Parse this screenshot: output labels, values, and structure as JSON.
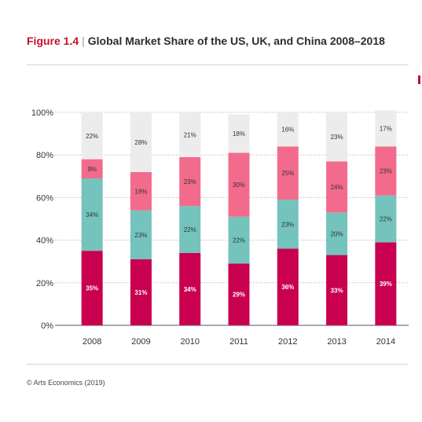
{
  "figure_label": "Figure 1.4",
  "title_text": "Global Market Share of the US, UK, and China 2008–2018",
  "source": "© Arts Economics (2019)",
  "colors": {
    "segment_bottom": "#c8004f",
    "segment_middle": "#74c3bd",
    "segment_upper": "#f36b8c",
    "segment_top": "#ececec",
    "accent": "#c8102e"
  },
  "chart_data": {
    "type": "bar",
    "stacked": true,
    "categories": [
      "2008",
      "2009",
      "2010",
      "2011",
      "2012",
      "2013",
      "2014"
    ],
    "series": [
      {
        "values": [
          35,
          31,
          34,
          29,
          36,
          33,
          39
        ],
        "labels": [
          "35%",
          "31%",
          "34%",
          "29%",
          "36%",
          "33%",
          "39%"
        ]
      },
      {
        "values": [
          34,
          23,
          22,
          22,
          23,
          20,
          22
        ],
        "labels": [
          "34%",
          "23%",
          "22%",
          "22%",
          "23%",
          "20%",
          "22%"
        ]
      },
      {
        "values": [
          9,
          18,
          23,
          30,
          25,
          24,
          23
        ],
        "labels": [
          "9%",
          "18%",
          "23%",
          "30%",
          "25%",
          "24%",
          "23%"
        ]
      },
      {
        "values": [
          22,
          28,
          21,
          18,
          16,
          23,
          17
        ],
        "labels": [
          "22%",
          "28%",
          "21%",
          "18%",
          "16%",
          "23%",
          "17%"
        ]
      }
    ],
    "ylim": [
      0,
      100
    ],
    "yticks": [
      "0%",
      "20%",
      "40%",
      "60%",
      "80%",
      "100%"
    ],
    "grid": true
  }
}
